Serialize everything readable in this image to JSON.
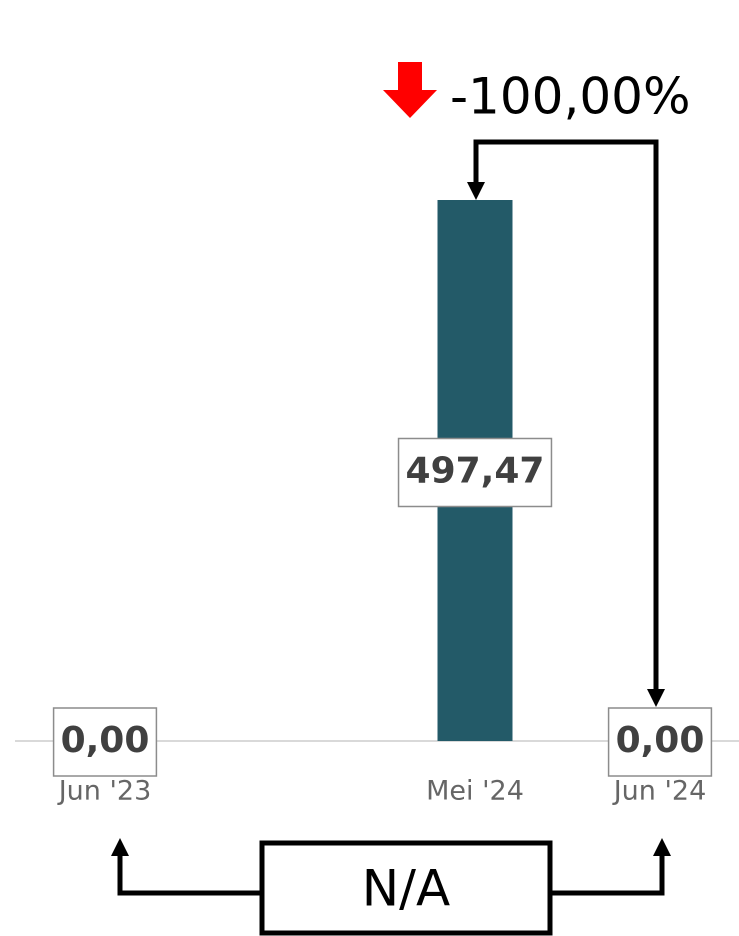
{
  "chart_data": {
    "type": "bar",
    "categories": [
      "Jun '23",
      "Mei '24",
      "Jun '24"
    ],
    "values": [
      0,
      497.47,
      0
    ],
    "value_labels": [
      "0,00",
      "497,47",
      "0,00"
    ],
    "color": "#235a68",
    "annotations": {
      "change": "-100,00%",
      "comparison": "N/A"
    }
  }
}
